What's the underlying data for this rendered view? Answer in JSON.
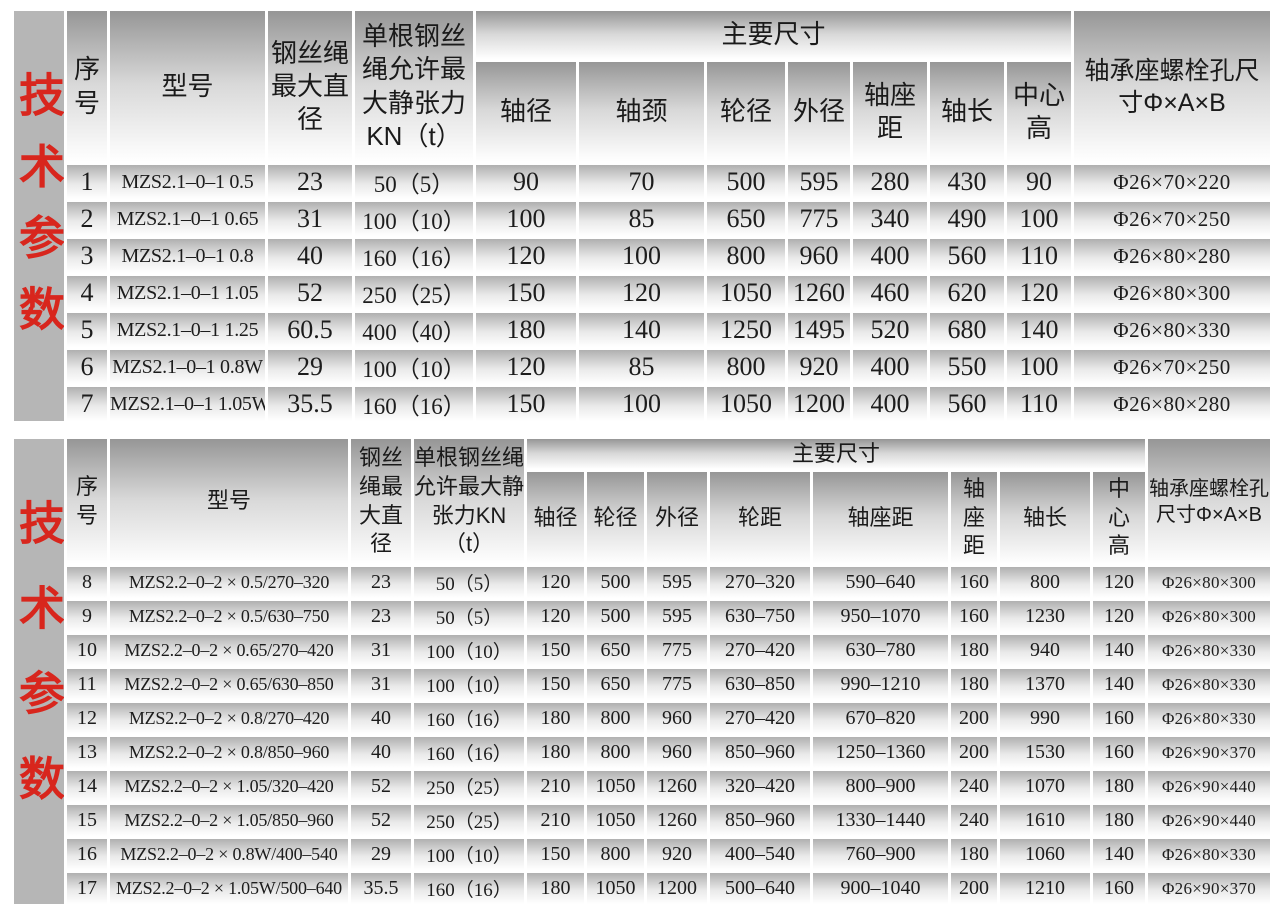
{
  "page": {
    "background": "#ffffff",
    "accent_red": "#d8261d",
    "cell_gray": "#b0b0b0"
  },
  "side_label": {
    "text": "技术参数"
  },
  "table1": {
    "headers": {
      "index": "序号",
      "model": "型号",
      "rope_dia": "钢丝绳最大直径",
      "tension": "单根钢丝绳允许最大静张力KN（t）",
      "main_dims": "主要尺寸",
      "dims": [
        "轴径",
        "轴颈",
        "轮径",
        "外径",
        "轴座距",
        "轴长",
        "中心高"
      ],
      "bolt": "轴承座螺栓孔尺寸Φ×A×B"
    },
    "rows": [
      [
        "1",
        "MZS2.1–0–1 0.5",
        "23",
        "50（5）",
        "90",
        "70",
        "500",
        "595",
        "280",
        "430",
        "90",
        "Φ26×70×220"
      ],
      [
        "2",
        "MZS2.1–0–1 0.65",
        "31",
        "100（10）",
        "100",
        "85",
        "650",
        "775",
        "340",
        "490",
        "100",
        "Φ26×70×250"
      ],
      [
        "3",
        "MZS2.1–0–1 0.8",
        "40",
        "160（16）",
        "120",
        "100",
        "800",
        "960",
        "400",
        "560",
        "110",
        "Φ26×80×280"
      ],
      [
        "4",
        "MZS2.1–0–1 1.05",
        "52",
        "250（25）",
        "150",
        "120",
        "1050",
        "1260",
        "460",
        "620",
        "120",
        "Φ26×80×300"
      ],
      [
        "5",
        "MZS2.1–0–1 1.25",
        "60.5",
        "400（40）",
        "180",
        "140",
        "1250",
        "1495",
        "520",
        "680",
        "140",
        "Φ26×80×330"
      ],
      [
        "6",
        "MZS2.1–0–1 0.8W",
        "29",
        "100（10）",
        "120",
        "85",
        "800",
        "920",
        "400",
        "550",
        "100",
        "Φ26×70×250"
      ],
      [
        "7",
        "MZS2.1–0–1 1.05W",
        "35.5",
        "160（16）",
        "150",
        "100",
        "1050",
        "1200",
        "400",
        "560",
        "110",
        "Φ26×80×280"
      ]
    ]
  },
  "table2": {
    "headers": {
      "index": "序号",
      "model": "型号",
      "rope_dia": "钢丝绳最大直径",
      "tension": "单根钢丝绳允许最大静张力KN（t）",
      "main_dims": "主要尺寸",
      "dims": [
        "轴径",
        "轮径",
        "外径",
        "轮距",
        "轴座距",
        "轴座距",
        "轴长",
        "中心高"
      ],
      "bolt": "轴承座螺栓孔尺寸Φ×A×B"
    },
    "rows": [
      [
        "8",
        "MZS2.2–0–2 × 0.5/270–320",
        "23",
        "50（5）",
        "120",
        "500",
        "595",
        "270–320",
        "590–640",
        "160",
        "800",
        "120",
        "Φ26×80×300"
      ],
      [
        "9",
        "MZS2.2–0–2 × 0.5/630–750",
        "23",
        "50（5）",
        "120",
        "500",
        "595",
        "630–750",
        "950–1070",
        "160",
        "1230",
        "120",
        "Φ26×80×300"
      ],
      [
        "10",
        "MZS2.2–0–2 × 0.65/270–420",
        "31",
        "100（10）",
        "150",
        "650",
        "775",
        "270–420",
        "630–780",
        "180",
        "940",
        "140",
        "Φ26×80×330"
      ],
      [
        "11",
        "MZS2.2–0–2 × 0.65/630–850",
        "31",
        "100（10）",
        "150",
        "650",
        "775",
        "630–850",
        "990–1210",
        "180",
        "1370",
        "140",
        "Φ26×80×330"
      ],
      [
        "12",
        "MZS2.2–0–2 × 0.8/270–420",
        "40",
        "160（16）",
        "180",
        "800",
        "960",
        "270–420",
        "670–820",
        "200",
        "990",
        "160",
        "Φ26×80×330"
      ],
      [
        "13",
        "MZS2.2–0–2 × 0.8/850–960",
        "40",
        "160（16）",
        "180",
        "800",
        "960",
        "850–960",
        "1250–1360",
        "200",
        "1530",
        "160",
        "Φ26×90×370"
      ],
      [
        "14",
        "MZS2.2–0–2 × 1.05/320–420",
        "52",
        "250（25）",
        "210",
        "1050",
        "1260",
        "320–420",
        "800–900",
        "240",
        "1070",
        "180",
        "Φ26×90×440"
      ],
      [
        "15",
        "MZS2.2–0–2 × 1.05/850–960",
        "52",
        "250（25）",
        "210",
        "1050",
        "1260",
        "850–960",
        "1330–1440",
        "240",
        "1610",
        "180",
        "Φ26×90×440"
      ],
      [
        "16",
        "MZS2.2–0–2 × 0.8W/400–540",
        "29",
        "100（10）",
        "150",
        "800",
        "920",
        "400–540",
        "760–900",
        "180",
        "1060",
        "140",
        "Φ26×80×330"
      ],
      [
        "17",
        "MZS2.2–0–2 × 1.05W/500–640",
        "35.5",
        "160（16）",
        "180",
        "1050",
        "1200",
        "500–640",
        "900–1040",
        "200",
        "1210",
        "160",
        "Φ26×90×370"
      ]
    ]
  }
}
